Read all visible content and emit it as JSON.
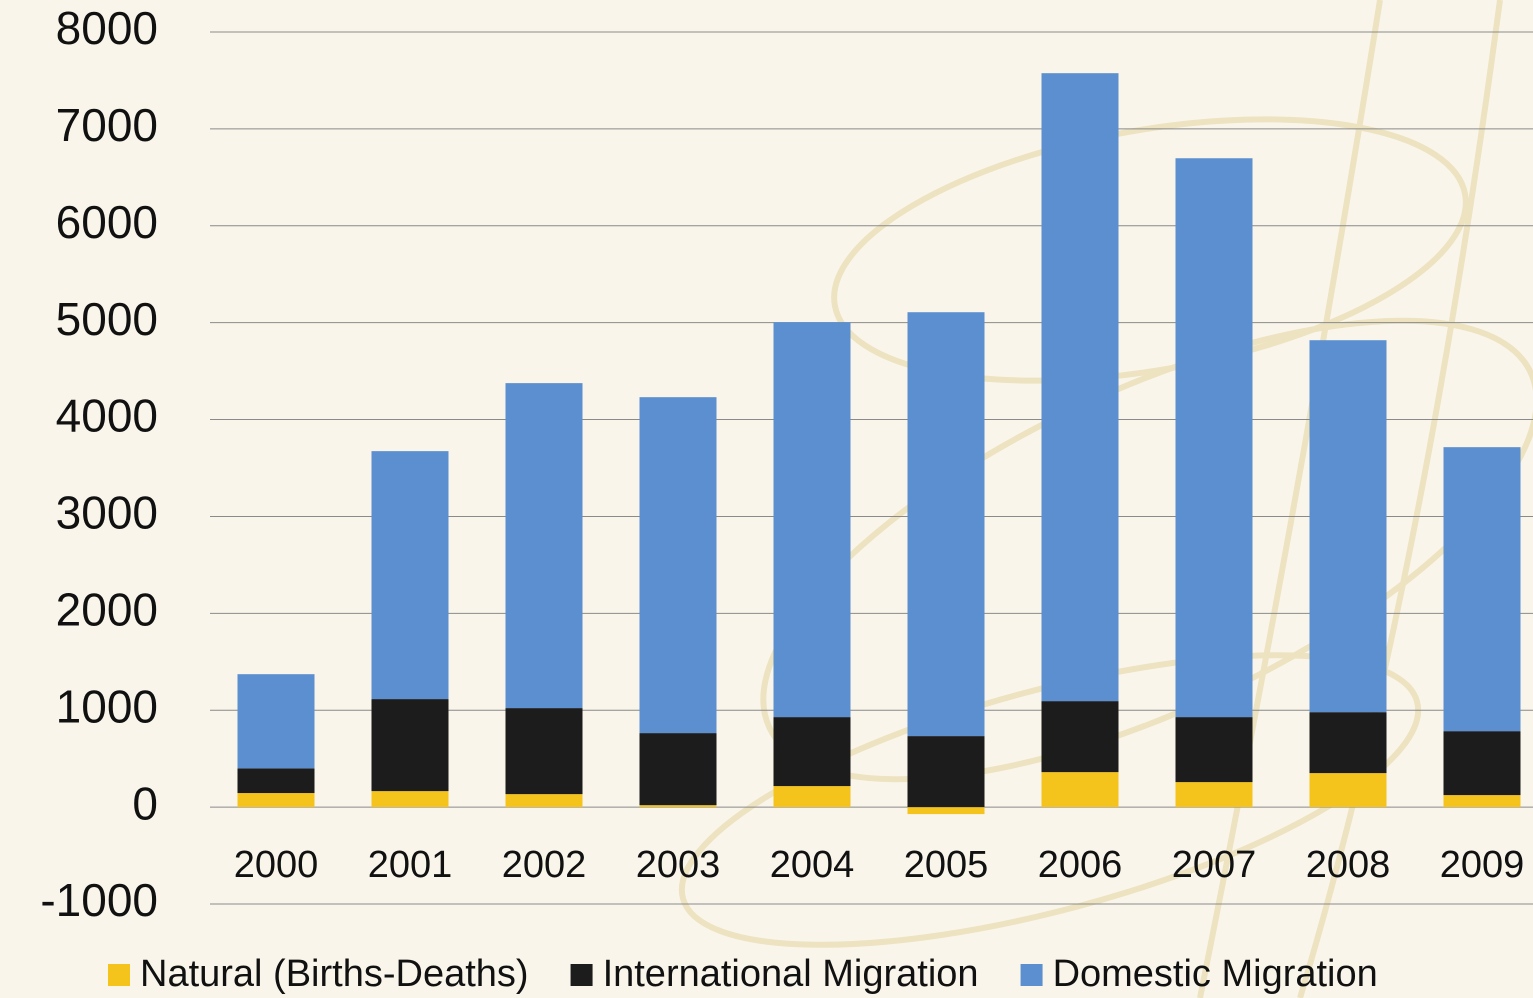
{
  "chart_data": {
    "type": "stacked-bar",
    "categories": [
      "2000",
      "2001",
      "2002",
      "2003",
      "2004",
      "2005",
      "2006",
      "2007",
      "2008",
      "2009"
    ],
    "series": [
      {
        "name": "Natural (Births-Deaths)",
        "color": "#f5c41c",
        "values": [
          145,
          165,
          134,
          20,
          217,
          -72,
          361,
          258,
          351,
          124
        ]
      },
      {
        "name": "International Migration",
        "color": "#1c1c1c",
        "values": [
          255,
          950,
          888,
          744,
          712,
          733,
          733,
          671,
          629,
          660
        ]
      },
      {
        "name": "Domestic Migration",
        "color": "#5c8fd0",
        "values": [
          972,
          2559,
          3354,
          3467,
          4076,
          4375,
          6481,
          5768,
          3839,
          2931
        ]
      }
    ],
    "ylim": [
      -1000,
      8000
    ],
    "yticks": [
      -1000,
      0,
      1000,
      2000,
      3000,
      4000,
      5000,
      6000,
      7000,
      8000
    ],
    "grid": true,
    "legend": "bottom"
  }
}
